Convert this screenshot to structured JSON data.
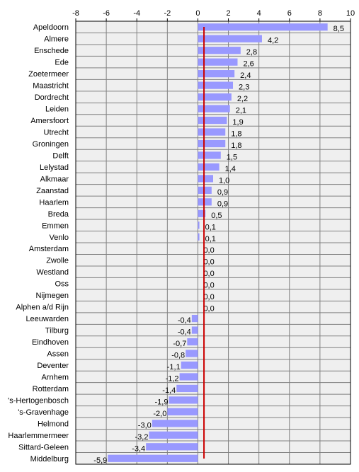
{
  "chart_data": {
    "type": "bar",
    "orientation": "horizontal",
    "categories": [
      "Apeldoorn",
      "Almere",
      "Enschede",
      "Ede",
      "Zoetermeer",
      "Maastricht",
      "Dordrecht",
      "Leiden",
      "Amersfoort",
      "Utrecht",
      "Groningen",
      "Delft",
      "Lelystad",
      "Alkmaar",
      "Zaanstad",
      "Haarlem",
      "Breda",
      "Emmen",
      "Venlo",
      "Amsterdam",
      "Zwolle",
      "Westland",
      "Oss",
      "Nijmegen",
      "Alphen a/d Rijn",
      "Leeuwarden",
      "Tilburg",
      "Eindhoven",
      "Assen",
      "Deventer",
      "Arnhem",
      "Rotterdam",
      "'s-Hertogenbosch",
      "'s-Gravenhage",
      "Helmond",
      "Haarlemmermeer",
      "Sittard-Geleen",
      "Middelburg"
    ],
    "values": [
      8.5,
      4.2,
      2.8,
      2.6,
      2.4,
      2.3,
      2.2,
      2.1,
      1.9,
      1.8,
      1.8,
      1.5,
      1.4,
      1.0,
      0.9,
      0.9,
      0.5,
      0.1,
      0.1,
      0.0,
      0.0,
      0.0,
      0.0,
      0.0,
      0.0,
      -0.4,
      -0.4,
      -0.7,
      -0.8,
      -1.1,
      -1.2,
      -1.4,
      -1.9,
      -2.0,
      -3.0,
      -3.2,
      -3.4,
      -5.9
    ],
    "value_labels": [
      "8,5",
      "4,2",
      "2,8",
      "2,6",
      "2,4",
      "2,3",
      "2,2",
      "2,1",
      "1,9",
      "1,8",
      "1,8",
      "1,5",
      "1,4",
      "1,0",
      "0,9",
      "0,9",
      "0,5",
      "0,1",
      "0,1",
      "0,0",
      "0,0",
      "0,0",
      "0,0",
      "0,0",
      "0,0",
      "-0,4",
      "-0,4",
      "-0,7",
      "-0,8",
      "-1,1",
      "-1,2",
      "-1,4",
      "-1,9",
      "-2,0",
      "-3,0",
      "-3,2",
      "-3,4",
      "-5,9"
    ],
    "x_ticks": [
      "-8",
      "-6",
      "-4",
      "-2",
      "0",
      "2",
      "4",
      "6",
      "8",
      "10"
    ],
    "xlim": [
      -8,
      10
    ],
    "reference_line_value": 0.4,
    "x_axis_position": "top",
    "grid": true,
    "legend": "none",
    "title": "",
    "xlabel": "",
    "ylabel": "",
    "colors": {
      "bar": "#9999ff",
      "plot_background": "#efefef",
      "grid": "#808080",
      "reference_line": "#cc0000"
    }
  }
}
